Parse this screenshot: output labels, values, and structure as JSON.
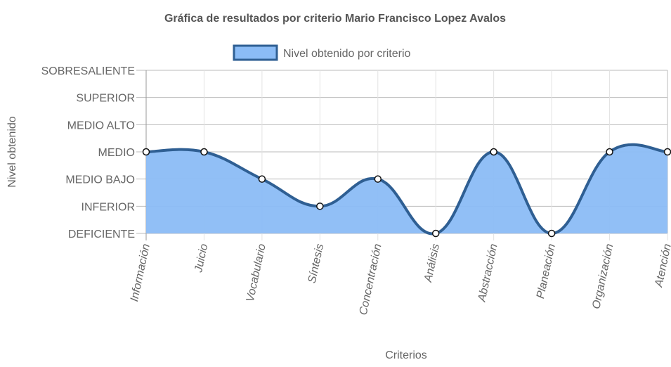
{
  "chart_data": {
    "type": "area",
    "title": "Gráfica de resultados por criterio Mario Francisco Lopez Avalos",
    "xlabel": "Criterios",
    "ylabel": "Nivel obtenido",
    "legend_position": "top",
    "grid": true,
    "y_levels": [
      "DEFICIENTE",
      "INFERIOR",
      "MEDIO BAJO",
      "MEDIO",
      "MEDIO ALTO",
      "SUPERIOR",
      "SOBRESALIENTE"
    ],
    "ylim": [
      1,
      7
    ],
    "categories": [
      "Información",
      "Juicio",
      "Vocabulario",
      "Síntesis",
      "Concentración",
      "Análisis",
      "Abstracción",
      "Planeación",
      "Organización",
      "Atención"
    ],
    "series": [
      {
        "name": "Nivel obtenido por criterio",
        "values": [
          4,
          4,
          3,
          2,
          3,
          1,
          4,
          1,
          4,
          4
        ],
        "line_color": "#2f5f93",
        "fill_color": "#8bbcf6"
      }
    ]
  }
}
